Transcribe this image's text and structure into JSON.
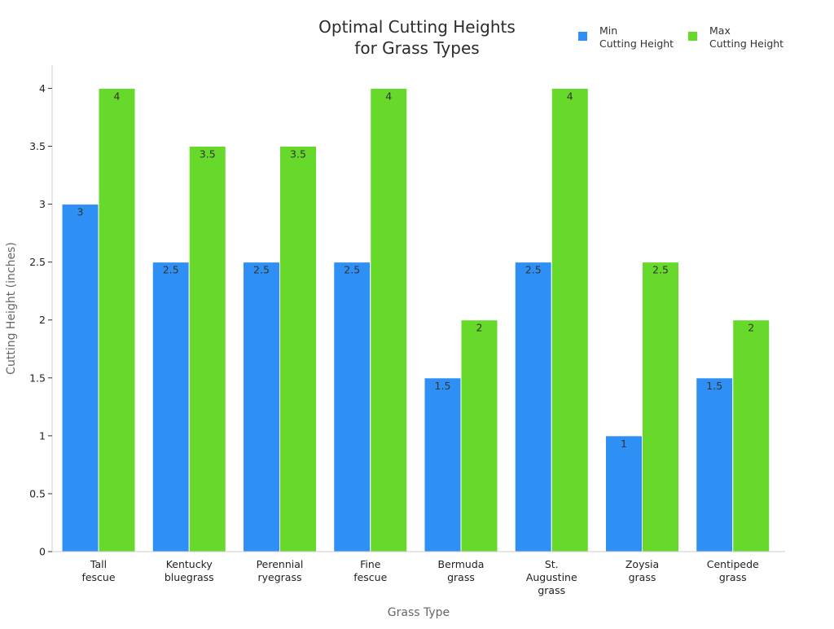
{
  "chart_data": {
    "type": "bar",
    "title": [
      "Optimal Cutting Heights",
      "for Grass Types"
    ],
    "xlabel": "Grass Type",
    "ylabel": "Cutting Height (inches)",
    "categories": [
      [
        "Tall",
        "fescue"
      ],
      [
        "Kentucky",
        "bluegrass"
      ],
      [
        "Perennial",
        "ryegrass"
      ],
      [
        "Fine",
        "fescue"
      ],
      [
        "Bermuda",
        "grass"
      ],
      [
        "St.",
        "Augustine",
        "grass"
      ],
      [
        "Zoysia",
        "grass"
      ],
      [
        "Centipede",
        "grass"
      ]
    ],
    "series": [
      {
        "name": [
          "Min",
          "Cutting Height"
        ],
        "color": "#2e90f5",
        "values": [
          3,
          2.5,
          2.5,
          2.5,
          1.5,
          2.5,
          1,
          1.5
        ],
        "labels": [
          "3",
          "2.5",
          "2.5",
          "2.5",
          "1.5",
          "2.5",
          "1",
          "1.5"
        ]
      },
      {
        "name": [
          "Max",
          "Cutting Height"
        ],
        "color": "#66d92a",
        "values": [
          4,
          3.5,
          3.5,
          4,
          2,
          4,
          2.5,
          2
        ],
        "labels": [
          "4",
          "3.5",
          "3.5",
          "4",
          "2",
          "4",
          "2.5",
          "2"
        ]
      }
    ],
    "ylim": [
      0,
      4.2
    ],
    "yticks": [
      0,
      0.5,
      1,
      1.5,
      2,
      2.5,
      3,
      3.5,
      4
    ],
    "ytick_labels": [
      "0",
      "0.5",
      "1",
      "1.5",
      "2",
      "2.5",
      "3",
      "3.5",
      "4"
    ],
    "grid": false,
    "legend_position": "top-right"
  }
}
